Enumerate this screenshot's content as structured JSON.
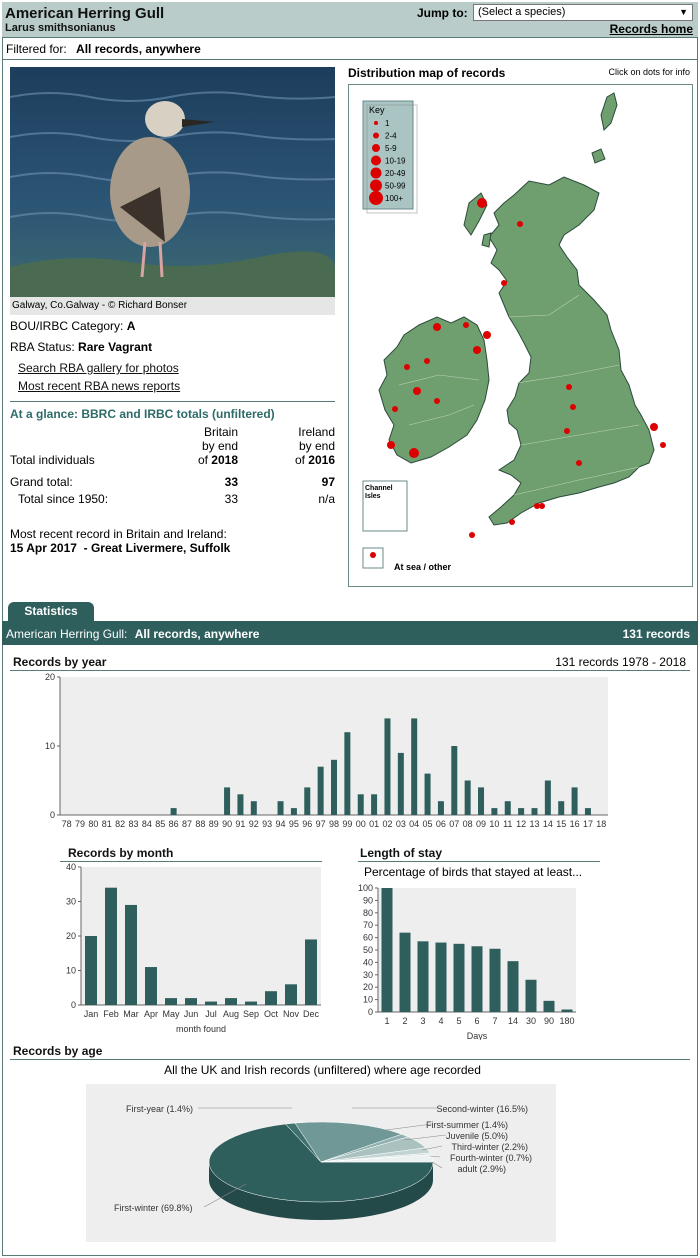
{
  "header": {
    "species_name": "American Herring Gull",
    "latin_name": "Larus smithsonianus",
    "jump_label": "Jump to:",
    "jump_select_value": "(Select a species)",
    "records_home": "Records home"
  },
  "filter": {
    "label": "Filtered for:",
    "value": "All records, anywhere"
  },
  "photo": {
    "caption": "Galway, Co.Galway - © Richard Bonser"
  },
  "category": {
    "label": "BOU/IRBC Category:",
    "value": "A"
  },
  "rba_status": {
    "label": "RBA Status:",
    "value": "Rare Vagrant"
  },
  "links": {
    "gallery": "Search RBA gallery for photos",
    "news": "Most recent RBA news reports"
  },
  "glance": {
    "title": "At a glance: BBRC and IRBC totals (unfiltered)",
    "britain_h1": "Britain",
    "britain_h2": "by end",
    "britain_h3_pre": "of",
    "britain_year": "2018",
    "ireland_h1": "Ireland",
    "ireland_h2": "by end",
    "ireland_h3_pre": "of",
    "ireland_year": "2016",
    "total_individuals": "Total individuals",
    "grand_total_label": "Grand total:",
    "grand_total_britain": "33",
    "grand_total_ireland": "97",
    "since1950_label": "Total since 1950:",
    "since1950_britain": "33",
    "since1950_ireland": "n/a",
    "recent_label": "Most recent record in Britain and Ireland:",
    "recent_date": "15 Apr 2017",
    "recent_sep": "-",
    "recent_place": "Great Livermere, Suffolk"
  },
  "map": {
    "title": "Distribution map of records",
    "note": "Click on dots for info",
    "key_title": "Key",
    "key_items": [
      "1",
      "2-4",
      "5-9",
      "10-19",
      "20-49",
      "50-99",
      "100+"
    ],
    "channel_isles": "Channel\nIsles",
    "at_sea": "At sea / other",
    "land_color": "#6f9f6f",
    "dot_color": "#dd0000"
  },
  "stats": {
    "tab": "Statistics",
    "bar_species": "American Herring Gull:",
    "bar_filter": "All records, anywhere",
    "bar_count": "131 records"
  },
  "chart_data": [
    {
      "type": "bar",
      "title": "Records by year",
      "subtitle": "131 records 1978 - 2018",
      "categories": [
        "78",
        "79",
        "80",
        "81",
        "82",
        "83",
        "84",
        "85",
        "86",
        "87",
        "88",
        "89",
        "90",
        "91",
        "92",
        "93",
        "94",
        "95",
        "96",
        "97",
        "98",
        "99",
        "00",
        "01",
        "02",
        "03",
        "04",
        "05",
        "06",
        "07",
        "08",
        "09",
        "10",
        "11",
        "12",
        "13",
        "14",
        "15",
        "16",
        "17",
        "18"
      ],
      "values": [
        0,
        0,
        0,
        0,
        0,
        0,
        0,
        0,
        1,
        0,
        0,
        0,
        4,
        3,
        2,
        0,
        2,
        1,
        4,
        7,
        8,
        12,
        3,
        3,
        14,
        9,
        14,
        6,
        2,
        10,
        5,
        4,
        1,
        2,
        1,
        1,
        5,
        2,
        4,
        1,
        0
      ],
      "ylim": [
        0,
        20
      ],
      "yticks": [
        0,
        10,
        20
      ]
    },
    {
      "type": "bar",
      "title": "Records by month",
      "xlabel": "month found",
      "categories": [
        "Jan",
        "Feb",
        "Mar",
        "Apr",
        "May",
        "Jun",
        "Jul",
        "Aug",
        "Sep",
        "Oct",
        "Nov",
        "Dec"
      ],
      "values": [
        20,
        34,
        29,
        11,
        2,
        2,
        1,
        2,
        1,
        4,
        6,
        19
      ],
      "ylim": [
        0,
        40
      ],
      "yticks": [
        0,
        10,
        20,
        30,
        40
      ]
    },
    {
      "type": "bar",
      "title": "Length of stay",
      "subtitle": "Percentage of birds that stayed at least...",
      "xlabel": "Days",
      "categories": [
        "1",
        "2",
        "3",
        "4",
        "5",
        "6",
        "7",
        "14",
        "30",
        "90",
        "180"
      ],
      "values": [
        100,
        64,
        57,
        56,
        55,
        53,
        51,
        41,
        26,
        9,
        2
      ],
      "ylim": [
        0,
        100
      ],
      "yticks": [
        0,
        10,
        20,
        30,
        40,
        50,
        60,
        70,
        80,
        90,
        100
      ]
    },
    {
      "type": "pie",
      "title": "Records by age",
      "subtitle": "All the UK and Irish records (unfiltered) where age recorded",
      "slices": [
        {
          "label": "First-winter (69.8%)",
          "value": 69.8,
          "color": "#2e5f5d"
        },
        {
          "label": "First-year (1.4%)",
          "value": 1.4,
          "color": "#3f716f"
        },
        {
          "label": "Second-winter (16.5%)",
          "value": 16.5,
          "color": "#6f9896"
        },
        {
          "label": "First-summer (1.4%)",
          "value": 1.4,
          "color": "#8fb0ae"
        },
        {
          "label": "Juvenile (5.0%)",
          "value": 5.0,
          "color": "#a9c2c0"
        },
        {
          "label": "Third-winter (2.2%)",
          "value": 2.2,
          "color": "#c1d3d2"
        },
        {
          "label": "Fourth-winter (0.7%)",
          "value": 0.7,
          "color": "#d6e2e1"
        },
        {
          "label": "adult (2.9%)",
          "value": 2.9,
          "color": "#ecf2f1"
        }
      ]
    }
  ]
}
